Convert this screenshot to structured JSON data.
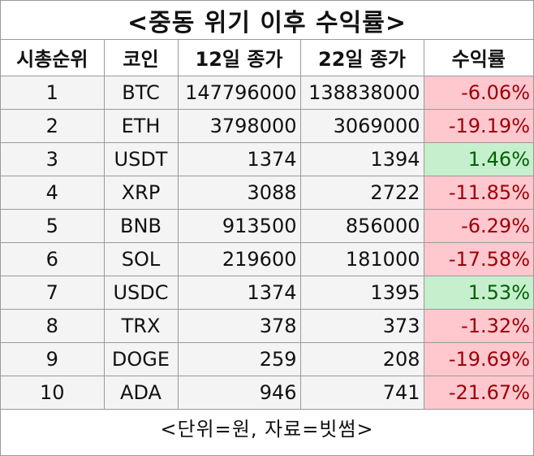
{
  "title": "<중동 위기 이후 수익률>",
  "headers": [
    "시총순위",
    "코인",
    "12일 종가",
    "22일 종가",
    "수익률"
  ],
  "rows": [
    {
      "rank": "1",
      "coin": "BTC",
      "close12": "147796000",
      "close22": "138838000",
      "return": "-6.06%",
      "sign": "neg"
    },
    {
      "rank": "2",
      "coin": "ETH",
      "close12": "3798000",
      "close22": "3069000",
      "return": "-19.19%",
      "sign": "neg"
    },
    {
      "rank": "3",
      "coin": "USDT",
      "close12": "1374",
      "close22": "1394",
      "return": "1.46%",
      "sign": "pos"
    },
    {
      "rank": "4",
      "coin": "XRP",
      "close12": "3088",
      "close22": "2722",
      "return": "-11.85%",
      "sign": "neg"
    },
    {
      "rank": "5",
      "coin": "BNB",
      "close12": "913500",
      "close22": "856000",
      "return": "-6.29%",
      "sign": "neg"
    },
    {
      "rank": "6",
      "coin": "SOL",
      "close12": "219600",
      "close22": "181000",
      "return": "-17.58%",
      "sign": "neg"
    },
    {
      "rank": "7",
      "coin": "USDC",
      "close12": "1374",
      "close22": "1395",
      "return": "1.53%",
      "sign": "pos"
    },
    {
      "rank": "8",
      "coin": "TRX",
      "close12": "378",
      "close22": "373",
      "return": "-1.32%",
      "sign": "neg"
    },
    {
      "rank": "9",
      "coin": "DOGE",
      "close12": "259",
      "close22": "208",
      "return": "-19.69%",
      "sign": "neg"
    },
    {
      "rank": "10",
      "coin": "ADA",
      "close12": "946",
      "close22": "741",
      "return": "-21.67%",
      "sign": "neg"
    }
  ],
  "footer": "<단위=원, 자료=빗썸>",
  "colors": {
    "negative_fill": "#ffc7ce",
    "negative_text": "#9c0006",
    "positive_fill": "#c6efce",
    "positive_text": "#006100"
  }
}
